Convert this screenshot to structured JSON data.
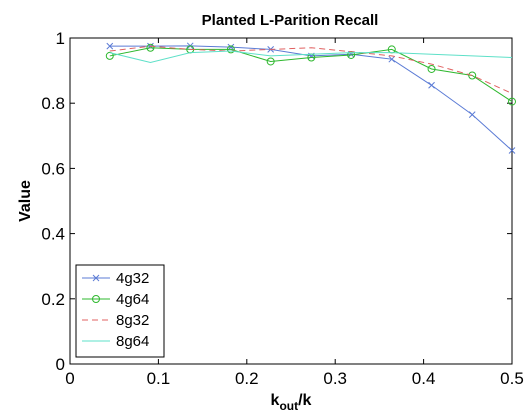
{
  "chart_data": {
    "type": "line",
    "title": "Planted L-Parition Recall",
    "ylabel": "Value",
    "xlabel_main": "k",
    "xlabel_sub": "out",
    "xlabel_tail": "/k",
    "xlim": [
      0,
      0.5
    ],
    "ylim": [
      0,
      1
    ],
    "xticks": [
      0,
      0.1,
      0.2,
      0.3,
      0.4,
      0.5
    ],
    "xtick_labels": [
      "0",
      "0.1",
      "0.2",
      "0.3",
      "0.4",
      "0.5"
    ],
    "yticks": [
      0,
      0.2,
      0.4,
      0.6,
      0.8,
      1
    ],
    "ytick_labels": [
      "0",
      "0.2",
      "0.4",
      "0.6",
      "0.8",
      "1"
    ],
    "grid": false,
    "legend_position": "bottom-left",
    "x": [
      0.045,
      0.091,
      0.136,
      0.182,
      0.227,
      0.273,
      0.318,
      0.364,
      0.409,
      0.455,
      0.5
    ],
    "series": [
      {
        "name": "4g32",
        "color": "#5b7bd5",
        "style": "solid",
        "marker": "x",
        "values": [
          0.975,
          0.975,
          0.976,
          0.972,
          0.965,
          0.945,
          0.95,
          0.935,
          0.855,
          0.765,
          0.655
        ]
      },
      {
        "name": "4g64",
        "color": "#2eb82e",
        "style": "solid",
        "marker": "o",
        "values": [
          0.945,
          0.97,
          0.965,
          0.965,
          0.928,
          0.94,
          0.948,
          0.965,
          0.905,
          0.885,
          0.805
        ]
      },
      {
        "name": "8g32",
        "color": "#e06060",
        "style": "dashed",
        "marker": "none",
        "values": [
          0.96,
          0.975,
          0.965,
          0.96,
          0.965,
          0.97,
          0.958,
          0.945,
          0.92,
          0.885,
          0.83
        ]
      },
      {
        "name": "8g64",
        "color": "#5ee0c8",
        "style": "solid",
        "marker": "none",
        "values": [
          0.955,
          0.925,
          0.955,
          0.96,
          0.945,
          0.95,
          0.955,
          0.955,
          0.95,
          0.945,
          0.94
        ]
      }
    ]
  }
}
